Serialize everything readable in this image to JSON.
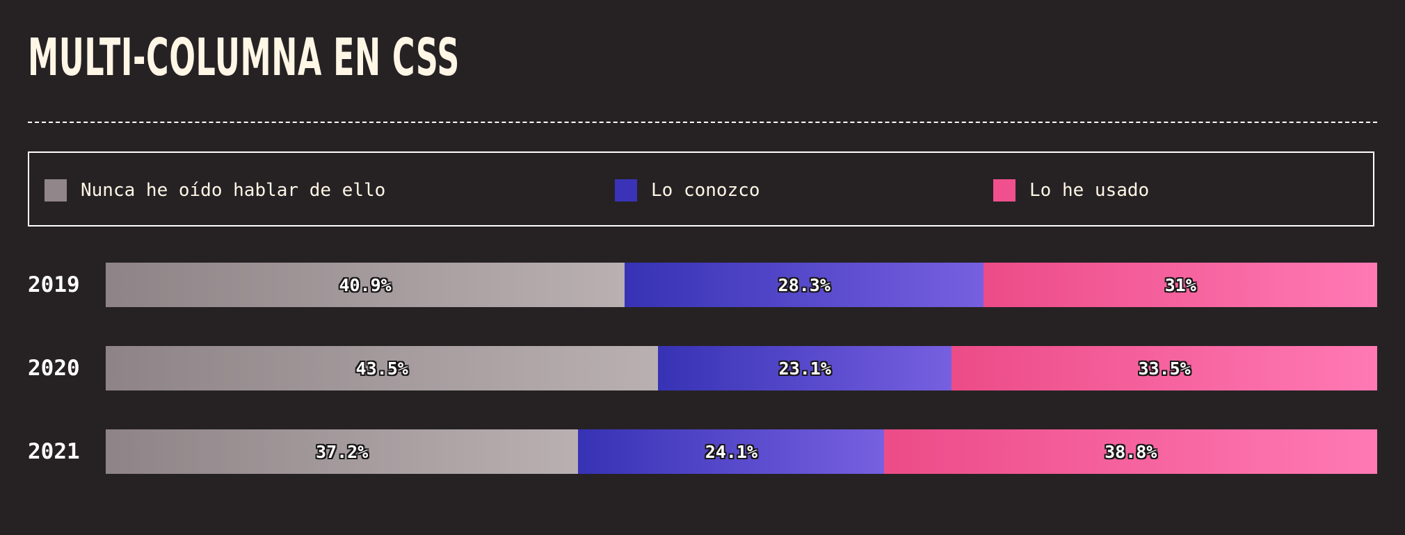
{
  "title": "MULTI-COLUMNA EN CSS",
  "legend": [
    {
      "label": "Nunca he oído hablar de ello",
      "color": "#918689"
    },
    {
      "label": "Lo conozco",
      "color": "#3a33b8"
    },
    {
      "label": "Lo he usado",
      "color": "#f0508e"
    }
  ],
  "chart_data": {
    "type": "bar",
    "orientation": "horizontal",
    "stacked": true,
    "categories": [
      "2019",
      "2020",
      "2021"
    ],
    "series": [
      {
        "name": "Nunca he oído hablar de ello",
        "values": [
          40.9,
          43.5,
          37.2
        ],
        "labels": [
          "40.9%",
          "43.5%",
          "37.2%"
        ]
      },
      {
        "name": "Lo conozco",
        "values": [
          28.3,
          23.1,
          24.1
        ],
        "labels": [
          "28.3%",
          "23.1%",
          "24.1%"
        ]
      },
      {
        "name": "Lo he usado",
        "values": [
          31,
          33.5,
          38.8
        ],
        "labels": [
          "31%",
          "33.5%",
          "38.8%"
        ]
      }
    ],
    "legend_position": "top",
    "grid": false
  }
}
